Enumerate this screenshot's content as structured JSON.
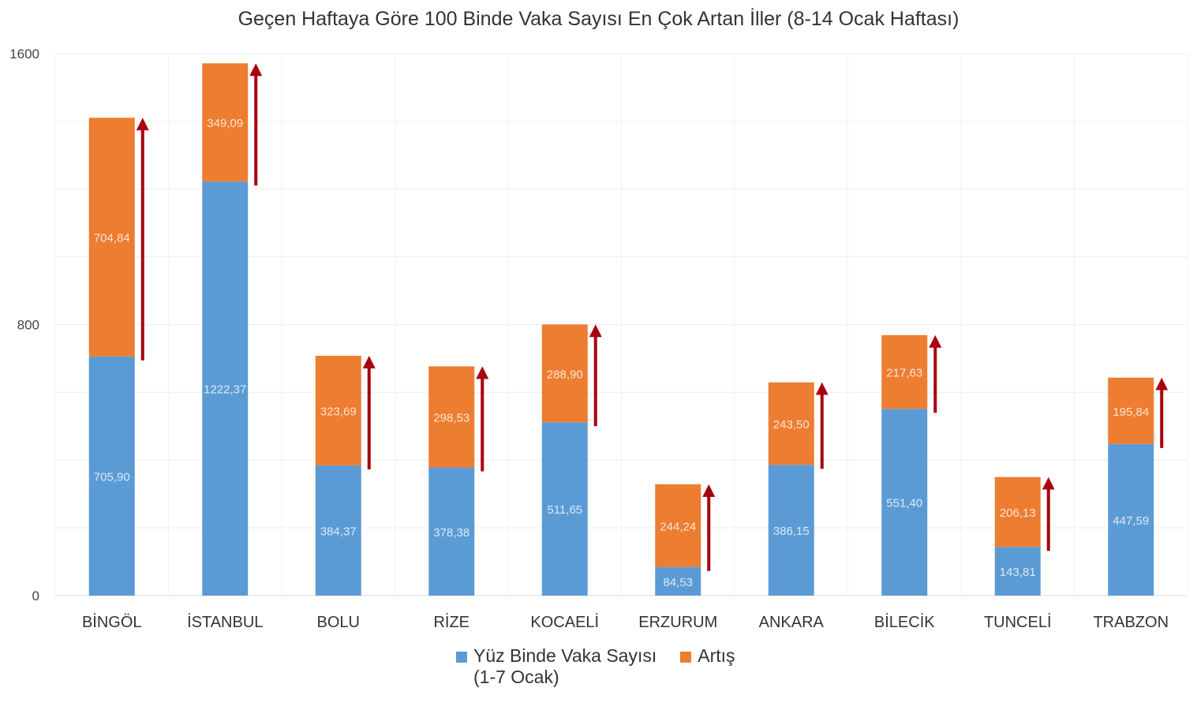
{
  "chart_data": {
    "type": "bar",
    "stacked": true,
    "title": "Geçen Haftaya Göre 100 Binde Vaka Sayısı En Çok Artan İller (8-14 Ocak Haftası)",
    "xlabel": "",
    "ylabel": "",
    "ylim": [
      0,
      1600
    ],
    "yticks": [
      "0",
      "800",
      "1600"
    ],
    "grid": true,
    "legend_position": "bottom",
    "categories": [
      "BİNGÖL",
      "İSTANBUL",
      "BOLU",
      "RİZE",
      "KOCAELİ",
      "ERZURUM",
      "ANKARA",
      "BİLECİK",
      "TUNCELİ",
      "TRABZON"
    ],
    "series": [
      {
        "name": "Yüz Binde Vaka Sayısı (1-7 Ocak)",
        "legend_lines": [
          "Yüz Binde Vaka Sayısı",
          "(1-7 Ocak)"
        ],
        "color": "#5b9bd5",
        "values": [
          705.9,
          1222.37,
          384.37,
          378.38,
          511.65,
          84.53,
          386.15,
          551.4,
          143.81,
          447.59
        ],
        "labels": [
          "705,90",
          "1222,37",
          "384,37",
          "378,38",
          "511,65",
          "84,53",
          "386,15",
          "551,40",
          "143,81",
          "447,59"
        ]
      },
      {
        "name": "Artış",
        "legend_lines": [
          "Artış"
        ],
        "color": "#ed7d31",
        "values": [
          704.84,
          349.09,
          323.69,
          298.53,
          288.9,
          244.24,
          243.5,
          217.63,
          206.13,
          195.84
        ],
        "labels": [
          "704,84",
          "349,09",
          "323,69",
          "298,53",
          "288,90",
          "244,24",
          "243,50",
          "217,63",
          "206,13",
          "195,84"
        ]
      }
    ],
    "annotations": {
      "increase_arrow_color": "#a8000f"
    }
  }
}
